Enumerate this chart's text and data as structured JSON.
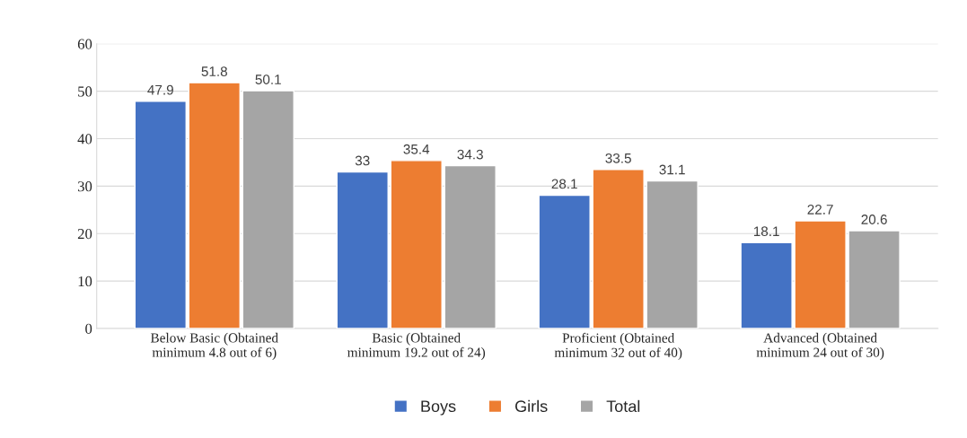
{
  "chart_data": {
    "type": "bar",
    "categories": [
      "Below Basic (Obtained\nminimum 4.8 out of 6)",
      "Basic (Obtained\nminimum 19.2 out of 24)",
      "Proficient (Obtained\nminimum 32 out of 40)",
      "Advanced (Obtained\nminimum 24 out of 30)"
    ],
    "series": [
      {
        "name": "Boys",
        "color": "#4472c4",
        "values": [
          47.9,
          33,
          28.1,
          18.1
        ]
      },
      {
        "name": "Girls",
        "color": "#ed7d31",
        "values": [
          51.8,
          35.4,
          33.5,
          22.7
        ]
      },
      {
        "name": "Total",
        "color": "#a5a5a5",
        "values": [
          50.1,
          34.3,
          31.1,
          20.6
        ]
      }
    ],
    "ylim": [
      0,
      60
    ],
    "yticks": [
      0,
      10,
      20,
      30,
      40,
      50,
      60
    ],
    "grid": "y",
    "legend": "bottom",
    "data_labels": true
  }
}
